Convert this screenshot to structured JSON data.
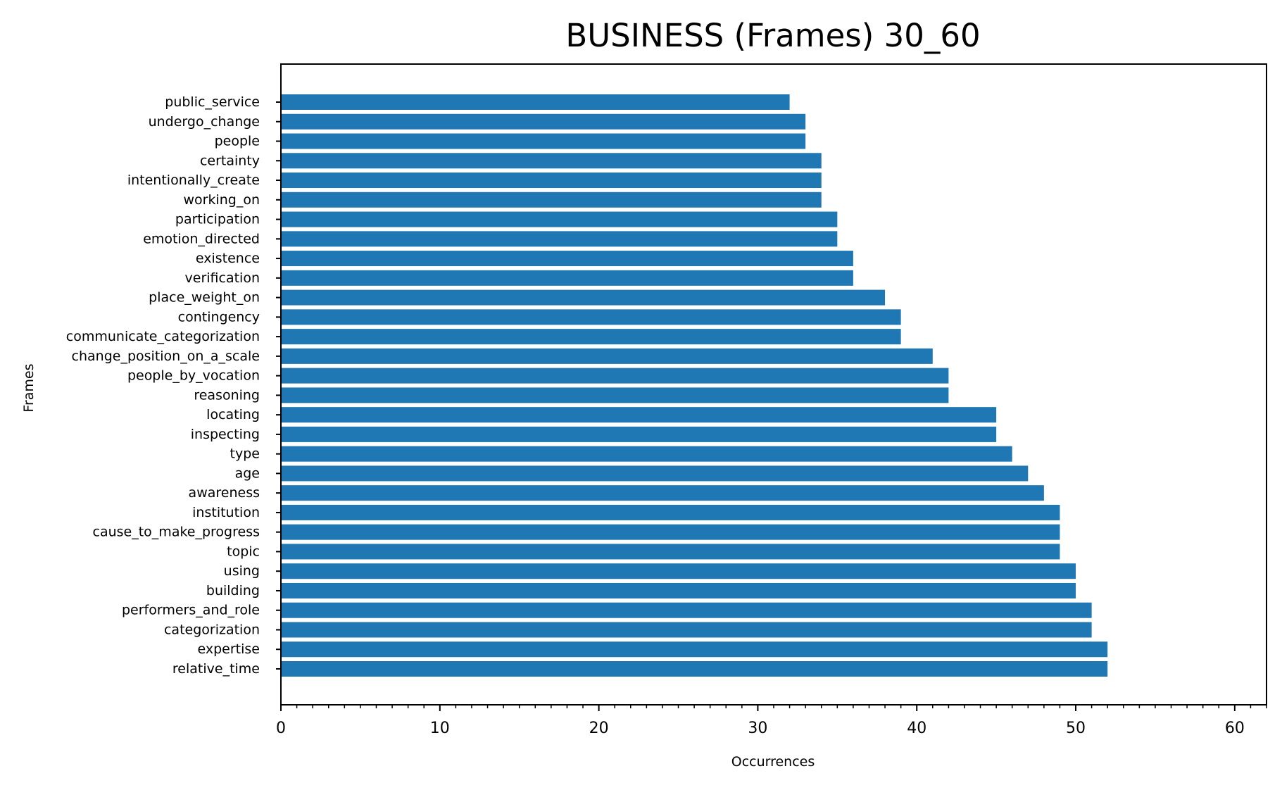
{
  "chart_data": {
    "type": "bar",
    "orientation": "horizontal",
    "title": "BUSINESS (Frames) 30_60",
    "xlabel": "Occurrences",
    "ylabel": "Frames",
    "xlim": [
      0,
      62
    ],
    "x_ticks": [
      0,
      10,
      20,
      30,
      40,
      50,
      60
    ],
    "x_minor_tick_step": 1,
    "grid": false,
    "legend": "none",
    "bar_color": "#1f77b4",
    "categories": [
      "public_service",
      "undergo_change",
      "people",
      "certainty",
      "intentionally_create",
      "working_on",
      "participation",
      "emotion_directed",
      "existence",
      "verification",
      "place_weight_on",
      "contingency",
      "communicate_categorization",
      "change_position_on_a_scale",
      "people_by_vocation",
      "reasoning",
      "locating",
      "inspecting",
      "type",
      "age",
      "awareness",
      "institution",
      "cause_to_make_progress",
      "topic",
      "using",
      "building",
      "performers_and_role",
      "categorization",
      "expertise",
      "relative_time"
    ],
    "values": [
      32,
      33,
      33,
      34,
      34,
      34,
      35,
      35,
      36,
      36,
      38,
      39,
      39,
      41,
      42,
      42,
      45,
      45,
      46,
      47,
      48,
      49,
      49,
      49,
      50,
      50,
      51,
      51,
      52,
      52
    ]
  }
}
